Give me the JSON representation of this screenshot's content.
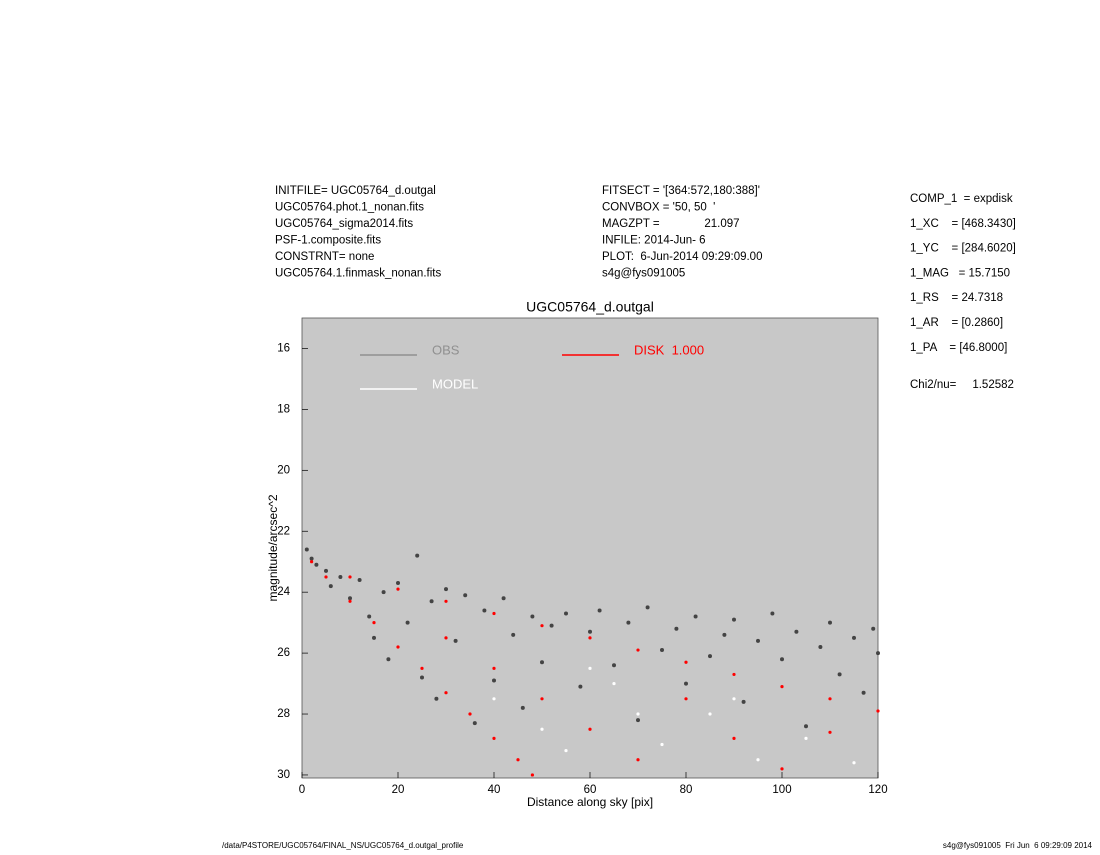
{
  "header_left": [
    "INITFILE= UGC05764_d.outgal",
    "UGC05764.phot.1_nonan.fits",
    "UGC05764_sigma2014.fits",
    "PSF-1.composite.fits",
    "CONSTRNT= none",
    "UGC05764.1.finmask_nonan.fits"
  ],
  "header_middle": [
    "FITSECT = '[364:572,180:388]'",
    "CONVBOX = '50, 50  '",
    "MAGZPT =              21.097",
    "INFILE: 2014-Jun- 6",
    "PLOT:  6-Jun-2014 09:29:09.00",
    "s4g@fys091005"
  ],
  "parameters": [
    "COMP_1  = expdisk",
    "1_XC    = [468.3430]",
    "1_YC    = [284.6020]",
    "1_MAG   = 15.7150",
    "1_RS    = 24.7318",
    "1_AR    = [0.2860]",
    "1_PA    = [46.8000]"
  ],
  "fit_statistic": "Chi2/nu=     1.52582",
  "footer": {
    "left": "/data/P4STORE/UGC05764/FINAL_NS/UGC05764_d.outgal_profile",
    "right": "s4g@fys091005  Fri Jun  6 09:29:09 2014"
  },
  "chart_data": {
    "type": "scatter",
    "title": "UGC05764_d.outgal",
    "x_label": "Distance along sky [pix]",
    "y_label": "magnitude/arcsec^2",
    "xlim": [
      0,
      120
    ],
    "xticks": [
      0,
      20,
      40,
      60,
      80,
      100,
      120
    ],
    "ylim": [
      15,
      30.1
    ],
    "yticks": [
      16,
      18,
      20,
      22,
      24,
      26,
      28,
      30
    ],
    "y_inverted": true,
    "background": "#c8c8c8",
    "series": [
      {
        "name": "OBS",
        "color": "#444444",
        "x": [
          1,
          2,
          3,
          5,
          6,
          8,
          10,
          12,
          14,
          15,
          17,
          18,
          20,
          22,
          24,
          25,
          27,
          28,
          30,
          32,
          34,
          36,
          38,
          40,
          42,
          44,
          46,
          48,
          50,
          52,
          55,
          58,
          60,
          62,
          65,
          68,
          70,
          72,
          75,
          78,
          80,
          82,
          85,
          88,
          90,
          92,
          95,
          98,
          100,
          103,
          105,
          108,
          110,
          112,
          115,
          117,
          119,
          120
        ],
        "values": [
          22.6,
          22.9,
          23.1,
          23.3,
          23.8,
          23.5,
          24.2,
          23.6,
          24.8,
          25.5,
          24.0,
          26.2,
          23.7,
          25.0,
          22.8,
          26.8,
          24.3,
          27.5,
          23.9,
          25.6,
          24.1,
          28.3,
          24.6,
          26.9,
          24.2,
          25.4,
          27.8,
          24.8,
          26.3,
          25.1,
          24.7,
          27.1,
          25.3,
          24.6,
          26.4,
          25.0,
          28.2,
          24.5,
          25.9,
          25.2,
          27.0,
          24.8,
          26.1,
          25.4,
          24.9,
          27.6,
          25.6,
          24.7,
          26.2,
          25.3,
          28.4,
          25.8,
          25.0,
          26.7,
          25.5,
          27.3,
          25.2,
          26.0
        ]
      },
      {
        "name": "MODEL",
        "color": "#ffffff",
        "x": [
          40,
          50,
          55,
          60,
          65,
          70,
          75,
          85,
          90,
          95,
          105,
          115
        ],
        "values": [
          27.5,
          28.5,
          29.2,
          26.5,
          27.0,
          28.0,
          29.0,
          28.0,
          27.5,
          29.5,
          28.8,
          29.6
        ]
      },
      {
        "name": "DISK  1.000",
        "color": "#ff0000",
        "x": [
          2,
          10,
          20,
          30,
          40,
          50,
          60,
          70,
          80,
          90,
          100,
          110,
          120,
          5,
          10,
          15,
          20,
          25,
          30,
          35,
          40,
          45,
          48,
          30,
          40,
          50,
          60,
          70,
          80,
          90,
          100,
          110
        ],
        "values": [
          23.0,
          23.5,
          23.9,
          24.3,
          24.7,
          25.1,
          25.5,
          25.9,
          26.3,
          26.7,
          27.1,
          27.5,
          27.9,
          23.5,
          24.3,
          25.0,
          25.8,
          26.5,
          27.3,
          28.0,
          28.8,
          29.5,
          30.0,
          25.5,
          26.5,
          27.5,
          28.5,
          29.5,
          27.5,
          28.8,
          29.8,
          28.6
        ]
      }
    ]
  }
}
